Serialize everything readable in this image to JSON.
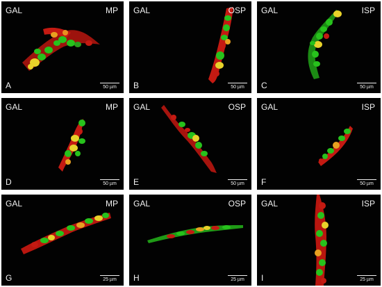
{
  "panels": [
    {
      "id": "A",
      "channel": "GAL",
      "region": "MP",
      "scale": "50 µm"
    },
    {
      "id": "B",
      "channel": "GAL",
      "region": "OSP",
      "scale": "50 µm"
    },
    {
      "id": "C",
      "channel": "GAL",
      "region": "ISP",
      "scale": "50 µm"
    },
    {
      "id": "D",
      "channel": "GAL",
      "region": "MP",
      "scale": "50 µm"
    },
    {
      "id": "E",
      "channel": "GAL",
      "region": "OSP",
      "scale": "50 µm"
    },
    {
      "id": "F",
      "channel": "GAL",
      "region": "ISP",
      "scale": "50 µm"
    },
    {
      "id": "G",
      "channel": "GAL",
      "region": "MP",
      "scale": "25 µm"
    },
    {
      "id": "H",
      "channel": "GAL",
      "region": "OSP",
      "scale": "25 µm"
    },
    {
      "id": "I",
      "channel": "GAL",
      "region": "ISP",
      "scale": "25 µm"
    }
  ],
  "colors": {
    "background": "#020202",
    "green": "#27c21c",
    "red": "#c41a12",
    "yellow": "#e8d22a",
    "arrow": "#ffffff",
    "text": "#f2f2f2"
  }
}
